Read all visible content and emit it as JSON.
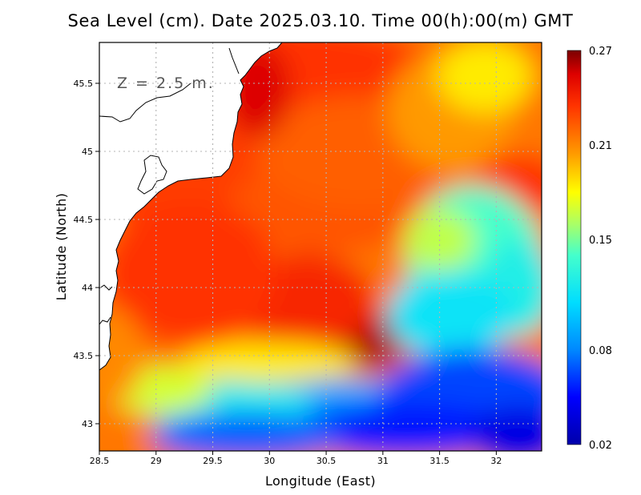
{
  "title": "Sea Level (cm). Date 2025.03.10. Time 00(h):00(m) GMT",
  "depth_label": "Z = 2.5 m.",
  "chart_data": {
    "type": "heatmap",
    "variable": "Sea Level (cm)",
    "title": "Sea Level (cm). Date 2025.03.10. Time 00(h):00(m) GMT",
    "xlabel": "Longitude (East)",
    "ylabel": "Latitude (North)",
    "xlim": [
      28.5,
      32.4
    ],
    "ylim": [
      42.8,
      45.8
    ],
    "xticks": [
      28.5,
      29,
      29.5,
      30,
      30.5,
      31,
      31.5,
      32
    ],
    "xtick_labels": [
      "28.5",
      "29",
      "29.5",
      "30",
      "30.5",
      "31",
      "31.5",
      "32"
    ],
    "yticks": [
      43,
      43.5,
      44,
      44.5,
      45,
      45.5
    ],
    "ytick_labels": [
      "43",
      "43.5",
      "44",
      "44.5",
      "45",
      "45.5"
    ],
    "grid": true,
    "colorbar": {
      "min": 0.02,
      "max": 0.27,
      "tick_labels": [
        "0.27",
        "0.21",
        "0.15",
        "0.08",
        "0.02"
      ],
      "tick_values": [
        0.27,
        0.21,
        0.15,
        0.08,
        0.02
      ],
      "stops": [
        {
          "value": 0.02,
          "color": "#0000aa"
        },
        {
          "value": 0.05,
          "color": "#0000ff"
        },
        {
          "value": 0.08,
          "color": "#0088ff"
        },
        {
          "value": 0.11,
          "color": "#00ddff"
        },
        {
          "value": 0.14,
          "color": "#44ffcc"
        },
        {
          "value": 0.16,
          "color": "#aaff66"
        },
        {
          "value": 0.18,
          "color": "#ffff00"
        },
        {
          "value": 0.205,
          "color": "#ff9900"
        },
        {
          "value": 0.235,
          "color": "#ff3300"
        },
        {
          "value": 0.255,
          "color": "#dd0000"
        },
        {
          "value": 0.27,
          "color": "#7a0000"
        }
      ]
    }
  },
  "colors": {
    "land": "#ffffff",
    "coastline": "#000000",
    "grid": "#b4b4b4",
    "frame": "#000000"
  }
}
